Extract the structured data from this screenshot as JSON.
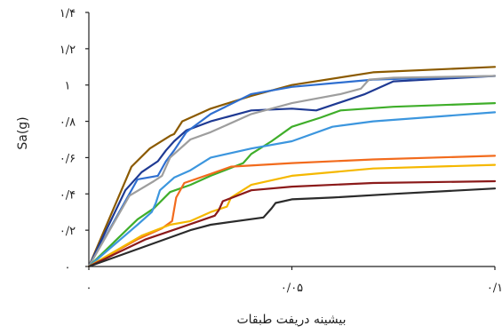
{
  "chart_data": {
    "type": "line",
    "title": "",
    "xlabel": "بیشینه دریفت طبقات",
    "ylabel": "Sa(g)",
    "xlim": [
      0,
      0.1
    ],
    "ylim": [
      0,
      1.4
    ],
    "x_ticks": [
      {
        "value": 0,
        "label": "۰"
      },
      {
        "value": 0.05,
        "label": "۰/۰۵"
      },
      {
        "value": 0.1,
        "label": "۰/۱"
      }
    ],
    "y_ticks": [
      {
        "value": 0,
        "label": "۰"
      },
      {
        "value": 0.2,
        "label": "۰/۲"
      },
      {
        "value": 0.4,
        "label": "۰/۴"
      },
      {
        "value": 0.6,
        "label": "۰/۶"
      },
      {
        "value": 0.8,
        "label": "۰/۸"
      },
      {
        "value": 1.0,
        "label": "۱"
      },
      {
        "value": 1.2,
        "label": "۱/۲"
      },
      {
        "value": 1.4,
        "label": "۱/۴"
      }
    ],
    "grid": false,
    "legend": "none",
    "series": [
      {
        "color": "#8B5A00",
        "points": [
          [
            0,
            0
          ],
          [
            0.0105,
            0.55
          ],
          [
            0.015,
            0.65
          ],
          [
            0.02,
            0.72
          ],
          [
            0.021,
            0.73
          ],
          [
            0.023,
            0.8
          ],
          [
            0.03,
            0.87
          ],
          [
            0.04,
            0.94
          ],
          [
            0.05,
            1.0
          ],
          [
            0.07,
            1.07
          ],
          [
            0.1,
            1.1
          ]
        ]
      },
      {
        "color": "#1F3A93",
        "points": [
          [
            0,
            0
          ],
          [
            0.009,
            0.42
          ],
          [
            0.013,
            0.52
          ],
          [
            0.017,
            0.58
          ],
          [
            0.019,
            0.64
          ],
          [
            0.021,
            0.69
          ],
          [
            0.024,
            0.75
          ],
          [
            0.03,
            0.8
          ],
          [
            0.04,
            0.86
          ],
          [
            0.05,
            0.87
          ],
          [
            0.056,
            0.86
          ],
          [
            0.06,
            0.89
          ],
          [
            0.068,
            0.95
          ],
          [
            0.075,
            1.02
          ],
          [
            0.1,
            1.05
          ]
        ]
      },
      {
        "color": "#2F6FD0",
        "points": [
          [
            0,
            0
          ],
          [
            0.012,
            0.48
          ],
          [
            0.017,
            0.5
          ],
          [
            0.019,
            0.58
          ],
          [
            0.021,
            0.64
          ],
          [
            0.024,
            0.74
          ],
          [
            0.03,
            0.84
          ],
          [
            0.04,
            0.95
          ],
          [
            0.05,
            0.99
          ],
          [
            0.07,
            1.03
          ],
          [
            0.1,
            1.05
          ]
        ]
      },
      {
        "color": "#9E9E9E",
        "points": [
          [
            0,
            0
          ],
          [
            0.01,
            0.39
          ],
          [
            0.016,
            0.47
          ],
          [
            0.018,
            0.5
          ],
          [
            0.02,
            0.6
          ],
          [
            0.025,
            0.7
          ],
          [
            0.03,
            0.74
          ],
          [
            0.04,
            0.84
          ],
          [
            0.05,
            0.9
          ],
          [
            0.062,
            0.95
          ],
          [
            0.067,
            0.98
          ],
          [
            0.069,
            1.03
          ],
          [
            0.075,
            1.04
          ],
          [
            0.1,
            1.05
          ]
        ]
      },
      {
        "color": "#3FAE2A",
        "points": [
          [
            0,
            0
          ],
          [
            0.012,
            0.26
          ],
          [
            0.016,
            0.32
          ],
          [
            0.02,
            0.41
          ],
          [
            0.025,
            0.45
          ],
          [
            0.03,
            0.5
          ],
          [
            0.038,
            0.57
          ],
          [
            0.04,
            0.62
          ],
          [
            0.045,
            0.69
          ],
          [
            0.05,
            0.77
          ],
          [
            0.057,
            0.82
          ],
          [
            0.062,
            0.86
          ],
          [
            0.075,
            0.88
          ],
          [
            0.1,
            0.9
          ]
        ]
      },
      {
        "color": "#3C96DE",
        "points": [
          [
            0,
            0
          ],
          [
            0.012,
            0.23
          ],
          [
            0.0155,
            0.3
          ],
          [
            0.0165,
            0.35
          ],
          [
            0.0175,
            0.42
          ],
          [
            0.021,
            0.49
          ],
          [
            0.025,
            0.53
          ],
          [
            0.03,
            0.6
          ],
          [
            0.04,
            0.65
          ],
          [
            0.05,
            0.69
          ],
          [
            0.06,
            0.77
          ],
          [
            0.07,
            0.8
          ],
          [
            0.1,
            0.85
          ]
        ]
      },
      {
        "color": "#F26B1D",
        "points": [
          [
            0,
            0
          ],
          [
            0.012,
            0.15
          ],
          [
            0.018,
            0.21
          ],
          [
            0.0205,
            0.25
          ],
          [
            0.0215,
            0.38
          ],
          [
            0.0235,
            0.46
          ],
          [
            0.03,
            0.51
          ],
          [
            0.035,
            0.55
          ],
          [
            0.05,
            0.57
          ],
          [
            0.07,
            0.59
          ],
          [
            0.1,
            0.61
          ]
        ]
      },
      {
        "color": "#F5B800",
        "points": [
          [
            0,
            0
          ],
          [
            0.013,
            0.17
          ],
          [
            0.02,
            0.23
          ],
          [
            0.025,
            0.25
          ],
          [
            0.03,
            0.3
          ],
          [
            0.034,
            0.33
          ],
          [
            0.035,
            0.38
          ],
          [
            0.04,
            0.45
          ],
          [
            0.05,
            0.5
          ],
          [
            0.07,
            0.54
          ],
          [
            0.1,
            0.56
          ]
        ]
      },
      {
        "color": "#8B1A1A",
        "points": [
          [
            0,
            0
          ],
          [
            0.014,
            0.15
          ],
          [
            0.022,
            0.21
          ],
          [
            0.031,
            0.28
          ],
          [
            0.032,
            0.31
          ],
          [
            0.033,
            0.36
          ],
          [
            0.04,
            0.42
          ],
          [
            0.05,
            0.44
          ],
          [
            0.07,
            0.46
          ],
          [
            0.1,
            0.47
          ]
        ]
      },
      {
        "color": "#2B2B2B",
        "points": [
          [
            0,
            0
          ],
          [
            0.015,
            0.12
          ],
          [
            0.025,
            0.2
          ],
          [
            0.03,
            0.23
          ],
          [
            0.043,
            0.27
          ],
          [
            0.045,
            0.32
          ],
          [
            0.046,
            0.35
          ],
          [
            0.05,
            0.37
          ],
          [
            0.06,
            0.38
          ],
          [
            0.075,
            0.4
          ],
          [
            0.1,
            0.43
          ]
        ]
      }
    ]
  }
}
